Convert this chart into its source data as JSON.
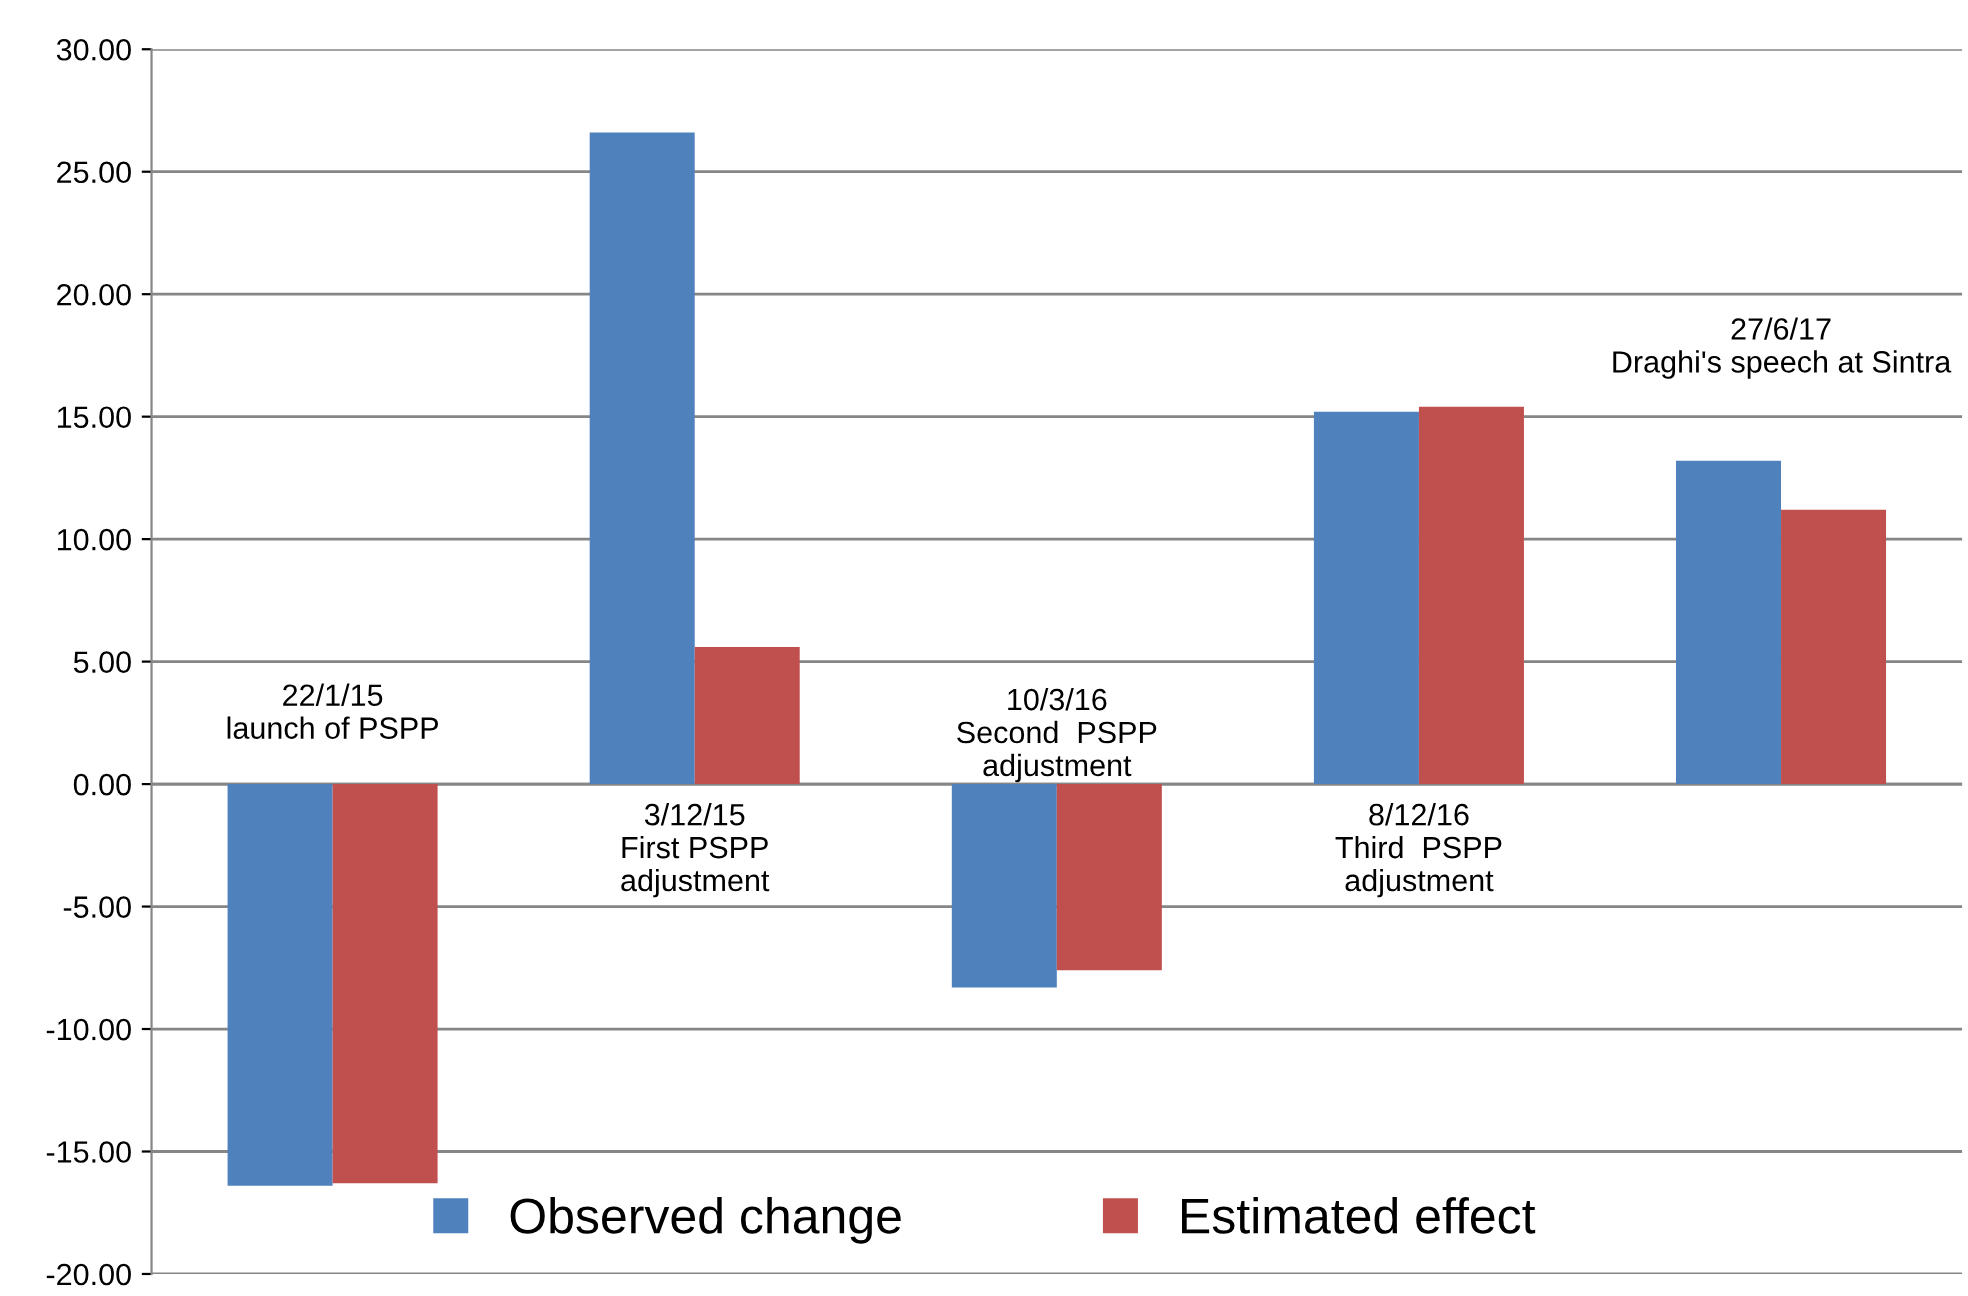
{
  "chart_data": {
    "type": "bar",
    "categories": [
      null,
      null,
      null,
      null,
      null
    ],
    "series": [
      {
        "name": "Observed change",
        "color": "#4f81bd",
        "values": [
          -16.4,
          26.6,
          -8.3,
          15.2,
          13.2
        ]
      },
      {
        "name": "Estimated effect",
        "color": "#c0504d",
        "values": [
          -16.3,
          5.6,
          -7.6,
          15.4,
          11.2
        ]
      }
    ],
    "ylim": [
      -20,
      30
    ],
    "yticks": [
      {
        "value": -20,
        "label": "-20.00"
      },
      {
        "value": -15,
        "label": "-15.00"
      },
      {
        "value": -10,
        "label": "-10.00"
      },
      {
        "value": -5,
        "label": "-5.00"
      },
      {
        "value": 0,
        "label": "0.00"
      },
      {
        "value": 5,
        "label": "5.00"
      },
      {
        "value": 10,
        "label": "10.00"
      },
      {
        "value": 15,
        "label": "15.00"
      },
      {
        "value": 20,
        "label": "20.00"
      },
      {
        "value": 25,
        "label": "25.00"
      },
      {
        "value": 30,
        "label": "30.00"
      }
    ],
    "grid": "y",
    "legend": "bottom",
    "tick_labels": "y",
    "annotations": [
      "22/1/15\nlaunch of PSPP",
      "3/12/15\nFirst PSPP\nadjustment",
      "10/3/16\nSecond  PSPP\nadjustment",
      "8/12/16\nThird  PSPP\nadjustment",
      "27/6/17\nDraghi's speech at Sintra"
    ]
  }
}
